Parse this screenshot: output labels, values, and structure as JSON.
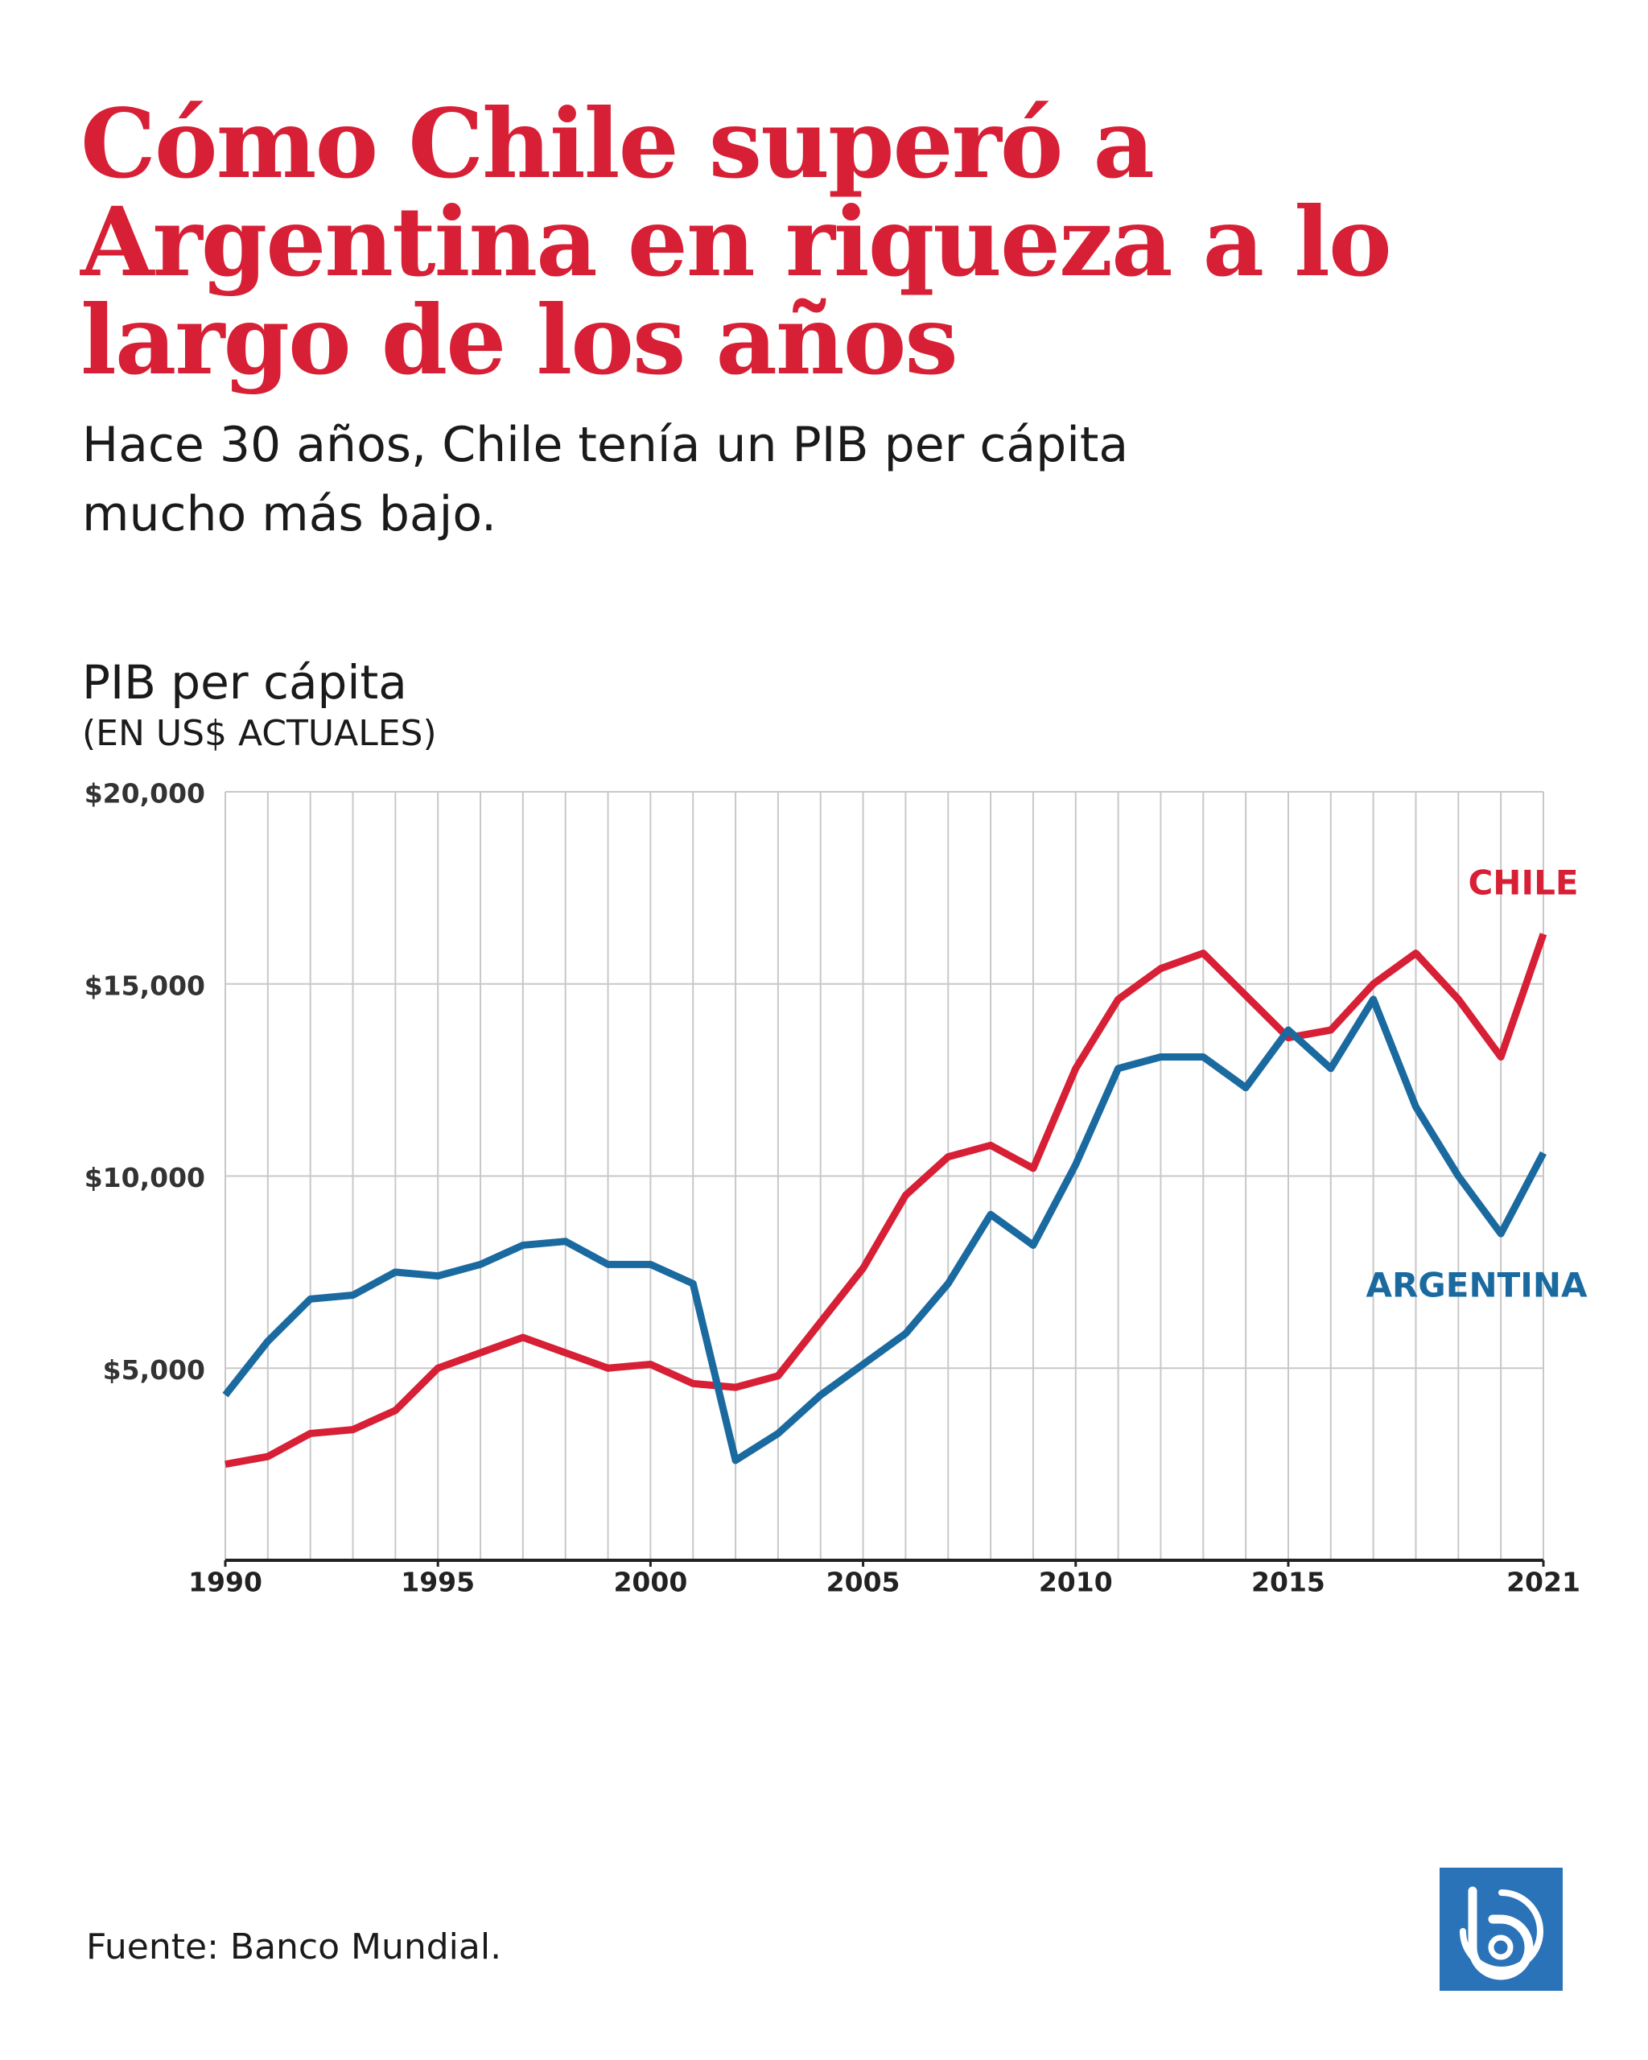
{
  "chart_data": {
    "type": "line",
    "title": "Cómo Chile superó a Argentina en riqueza a lo largo de los años",
    "subtitle": "Hace 30 años, Chile tenía un PIB per cápita mucho más bajo.",
    "y_label": "PIB per cápita",
    "y_label_sub": "(EN US$ ACTUALES)",
    "source": "Fuente: Banco Mundial.",
    "x": [
      1990,
      1991,
      1992,
      1993,
      1994,
      1995,
      1996,
      1997,
      1998,
      1999,
      2000,
      2001,
      2002,
      2003,
      2004,
      2005,
      2006,
      2007,
      2008,
      2009,
      2010,
      2011,
      2012,
      2013,
      2014,
      2015,
      2016,
      2017,
      2018,
      2019,
      2020,
      2021
    ],
    "xlim": [
      1990,
      2021
    ],
    "xticks": [
      1990,
      1995,
      2000,
      2005,
      2010,
      2015,
      2021
    ],
    "ylim": [
      0,
      20000
    ],
    "yticks": [
      {
        "value": 5000,
        "label": "$5,000"
      },
      {
        "value": 10000,
        "label": "$10,000"
      },
      {
        "value": 15000,
        "label": "$15,000"
      },
      {
        "value": 20000,
        "label": "$20,000"
      }
    ],
    "grid": true,
    "series": [
      {
        "name": "CHILE",
        "color": "#d71f35",
        "values": [
          2500,
          2700,
          3300,
          3400,
          3900,
          5000,
          5400,
          5800,
          5400,
          5000,
          5100,
          4600,
          4500,
          4800,
          6200,
          7600,
          9500,
          10500,
          10800,
          10200,
          12800,
          14600,
          15400,
          15800,
          14700,
          13600,
          13800,
          15000,
          15800,
          14600,
          13100,
          16300
        ]
      },
      {
        "name": "ARGENTINA",
        "color": "#1a6aa0",
        "values": [
          4300,
          5700,
          6800,
          6900,
          7500,
          7400,
          7700,
          8200,
          8300,
          7700,
          7700,
          7200,
          2600,
          3300,
          4300,
          5100,
          5900,
          7200,
          9000,
          8200,
          10300,
          12800,
          13100,
          13100,
          12300,
          13800,
          12800,
          14600,
          11800,
          10000,
          8500,
          10600
        ]
      }
    ]
  }
}
